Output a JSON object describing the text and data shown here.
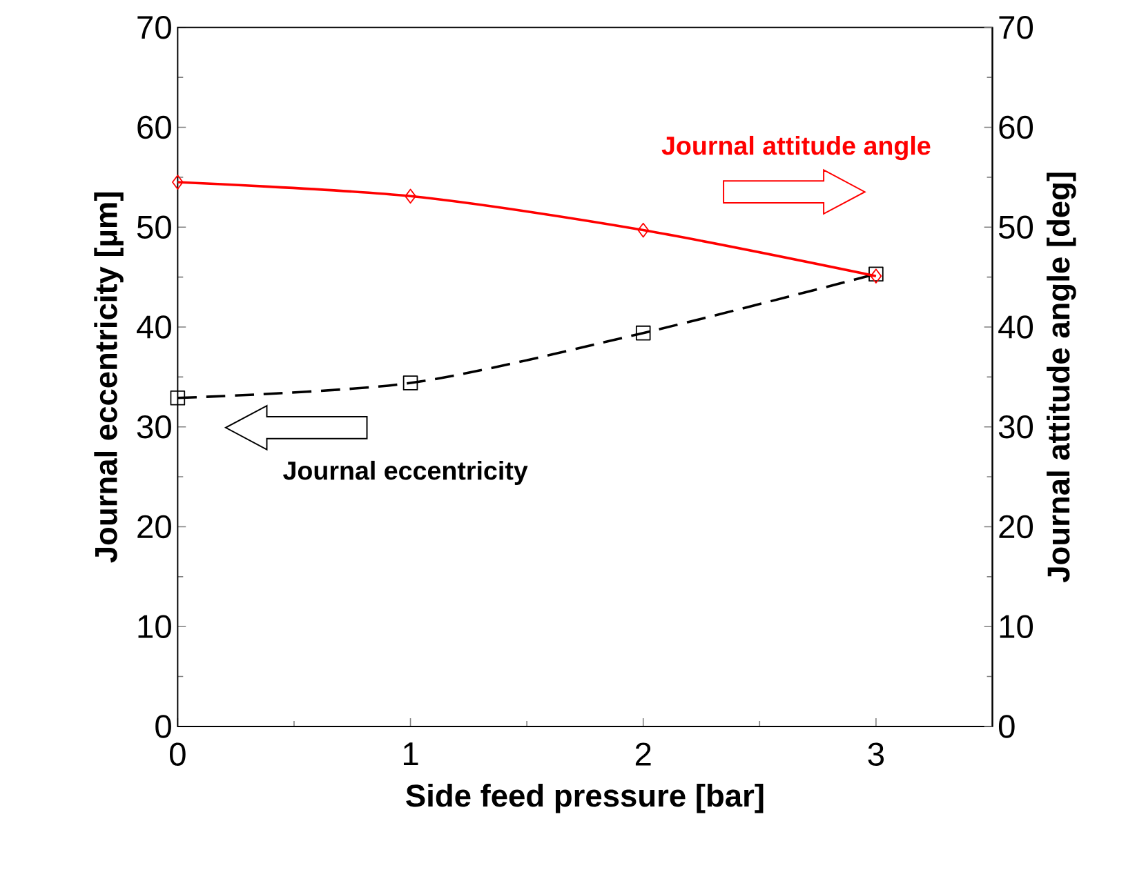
{
  "chart_data": {
    "type": "line",
    "xlabel": "Side feed pressure [bar]",
    "ylabel": "Journal eccentricity [µm]",
    "y2label": "Journal attitude angle [deg]",
    "x": [
      0,
      1,
      2,
      3
    ],
    "xlim": [
      0,
      3.5
    ],
    "xticks": [
      0,
      1,
      2,
      3
    ],
    "ylim": [
      0,
      70
    ],
    "yticks": [
      0,
      10,
      20,
      30,
      40,
      50,
      60,
      70
    ],
    "y2lim": [
      0,
      70
    ],
    "y2ticks": [
      0,
      10,
      20,
      30,
      40,
      50,
      60,
      70
    ],
    "series": [
      {
        "name": "Journal attitude angle",
        "color": "#ff0000",
        "values": [
          54.5,
          53.1,
          49.7,
          45.1
        ],
        "axis": "y2",
        "marker": "diamond",
        "line_style": "solid"
      },
      {
        "name": "Journal eccentricity",
        "color": "#000000",
        "values": [
          32.9,
          34.4,
          39.4,
          45.3
        ],
        "axis": "y",
        "marker": "square",
        "line_style": "dashed"
      }
    ]
  }
}
